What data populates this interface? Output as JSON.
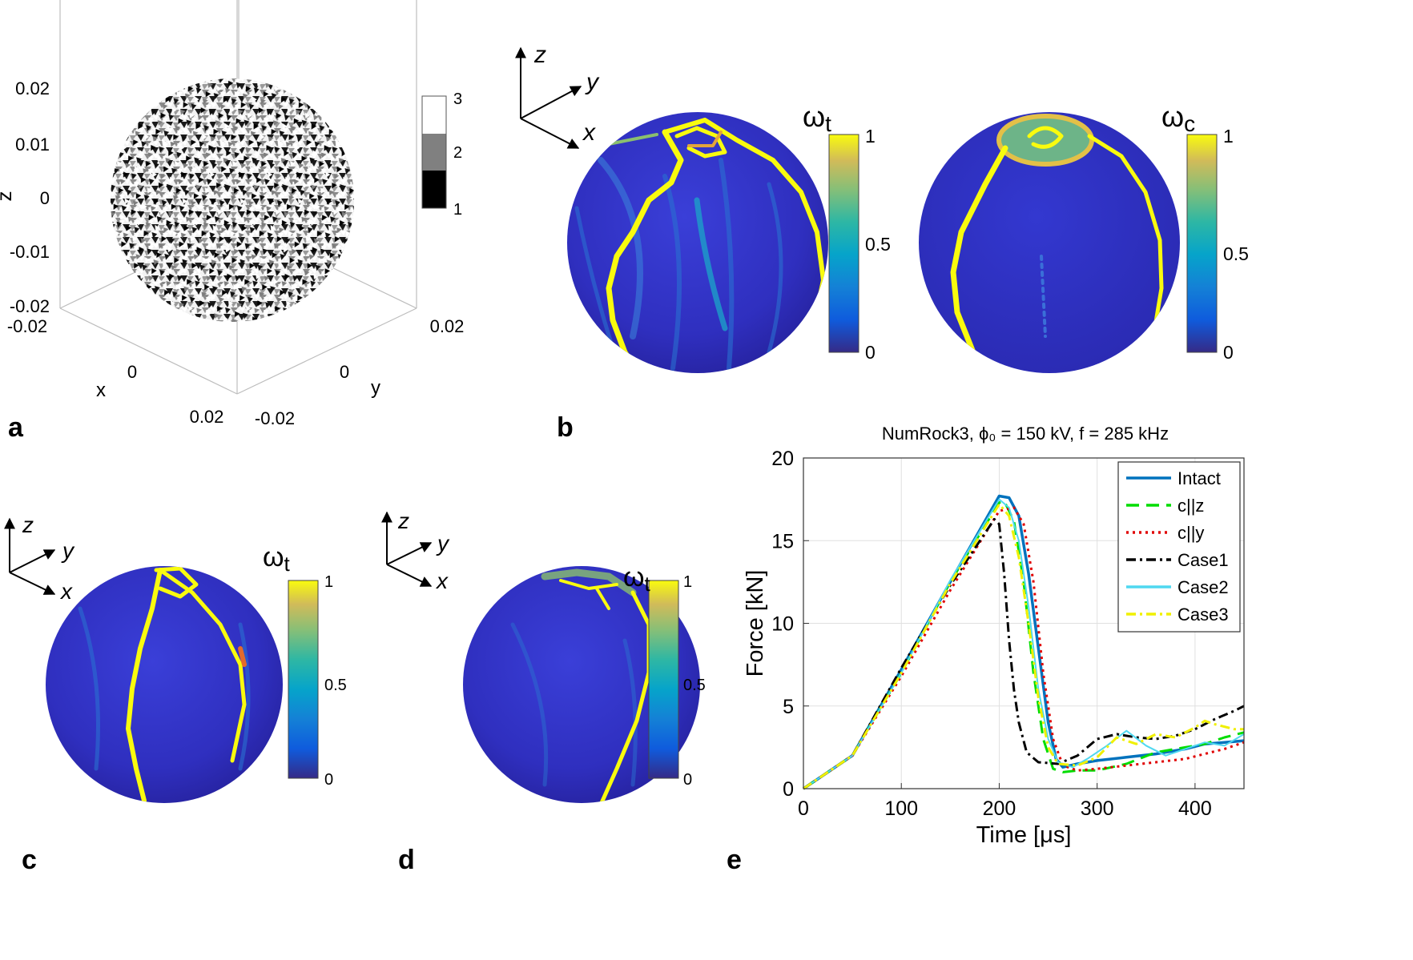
{
  "panels": {
    "a": {
      "letter": "a",
      "axes": {
        "z_label": "z",
        "x_label": "x",
        "y_label": "y",
        "z_ticks": [
          "0.02",
          "0.01",
          "0",
          "-0.01",
          "-0.02"
        ],
        "x_ticks": [
          "-0.02",
          "0",
          "0.02"
        ],
        "y_ticks": [
          "-0.02",
          "0",
          "0.02"
        ]
      },
      "colorbar": {
        "levels": [
          "3",
          "2",
          "1"
        ],
        "colors": [
          "#ffffff",
          "#808080",
          "#000000"
        ]
      }
    },
    "b": {
      "letter": "b",
      "triad": {
        "x": "x",
        "y": "y",
        "z": "z"
      },
      "left_colorbar": {
        "symbol": "ω",
        "sub": "t",
        "ticks": [
          "1",
          "0.5",
          "0"
        ]
      },
      "right_colorbar": {
        "symbol": "ω",
        "sub": "c",
        "ticks": [
          "1",
          "0.5",
          "0"
        ]
      }
    },
    "c": {
      "letter": "c",
      "triad": {
        "x": "x",
        "y": "y",
        "z": "z"
      },
      "colorbar": {
        "symbol": "ω",
        "sub": "t",
        "ticks": [
          "1",
          "0.5",
          "0"
        ]
      }
    },
    "d": {
      "letter": "d",
      "triad": {
        "x": "x",
        "y": "y",
        "z": "z"
      },
      "colorbar": {
        "symbol": "ω",
        "sub": "t",
        "ticks": [
          "1",
          "0.5",
          "0"
        ]
      }
    },
    "e": {
      "letter": "e"
    }
  },
  "chart_data": {
    "type": "line",
    "title": "NumRock3, ϕ₀ = 150 kV, f = 285 kHz",
    "xlabel": "Time [μs]",
    "ylabel": "Force [kN]",
    "xlim": [
      0,
      450
    ],
    "ylim": [
      0,
      20
    ],
    "xticks": [
      "0",
      "100",
      "200",
      "300",
      "400"
    ],
    "yticks": [
      "0",
      "5",
      "10",
      "15",
      "20"
    ],
    "grid": true,
    "legend_position": "top-right",
    "series": [
      {
        "name": "Intact",
        "color": "#0072bd",
        "dash": "solid",
        "x": [
          0,
          50,
          100,
          150,
          200,
          210,
          220,
          230,
          240,
          250,
          258,
          265,
          280,
          300,
          330,
          360,
          390,
          410,
          430,
          450
        ],
        "y": [
          0,
          2,
          7.2,
          12.5,
          17.7,
          17.6,
          16.5,
          13,
          8.5,
          4,
          1.8,
          1.3,
          1.5,
          1.7,
          1.9,
          2.1,
          2.4,
          2.7,
          2.8,
          2.9
        ]
      },
      {
        "name": "c||z",
        "color": "#00dd00",
        "dash": "long",
        "x": [
          0,
          50,
          100,
          150,
          200,
          205,
          215,
          225,
          235,
          245,
          255,
          265,
          280,
          300,
          330,
          360,
          390,
          410,
          430,
          450
        ],
        "y": [
          0,
          2,
          7,
          12.5,
          17.3,
          17.4,
          16.2,
          12.5,
          7,
          3,
          1.2,
          1,
          1.1,
          1.1,
          1.5,
          2.2,
          2.5,
          2.7,
          3.1,
          3.4
        ]
      },
      {
        "name": "c||y",
        "color": "#e00000",
        "dash": "dot",
        "x": [
          0,
          50,
          100,
          150,
          200,
          215,
          225,
          235,
          245,
          255,
          265,
          280,
          300,
          330,
          360,
          390,
          410,
          430,
          450
        ],
        "y": [
          0,
          2,
          6.8,
          12,
          16.8,
          17,
          16,
          12.5,
          7,
          3,
          1.4,
          1.1,
          1.2,
          1.4,
          1.6,
          1.8,
          2.1,
          2.4,
          2.8
        ]
      },
      {
        "name": "Case1",
        "color": "#000000",
        "dash": "dashdot",
        "x": [
          0,
          50,
          100,
          150,
          195,
          200,
          205,
          210,
          215,
          220,
          228,
          240,
          260,
          280,
          300,
          320,
          340,
          360,
          380,
          400,
          420,
          440,
          450
        ],
        "y": [
          0,
          2,
          7.3,
          12.3,
          16.3,
          16,
          13,
          9,
          6,
          4,
          2.2,
          1.6,
          1.5,
          2,
          3,
          3.3,
          3.1,
          3,
          3.2,
          3.6,
          4.2,
          4.7,
          5
        ]
      },
      {
        "name": "Case2",
        "color": "#4fd8f0",
        "dash": "solid",
        "x": [
          0,
          50,
          100,
          150,
          200,
          210,
          220,
          230,
          240,
          250,
          260,
          275,
          290,
          310,
          330,
          350,
          370,
          390,
          410,
          430,
          450
        ],
        "y": [
          0,
          2,
          7,
          12.6,
          17.5,
          17,
          15,
          11,
          6,
          3,
          1.6,
          1.3,
          1.8,
          2.6,
          3.5,
          2.6,
          2,
          2.4,
          2.8,
          2.6,
          3.3
        ]
      },
      {
        "name": "Case3",
        "color": "#f0f000",
        "dash": "dashdot",
        "x": [
          0,
          50,
          100,
          150,
          200,
          210,
          220,
          230,
          240,
          250,
          260,
          280,
          300,
          320,
          340,
          360,
          380,
          400,
          410,
          420,
          440,
          450
        ],
        "y": [
          0,
          2,
          7,
          12.4,
          17.2,
          16.5,
          14,
          10,
          5.5,
          2.5,
          1.5,
          1.4,
          1.9,
          3.1,
          2.7,
          3.3,
          3.1,
          3.7,
          4.1,
          3.9,
          3.6,
          3.6
        ]
      }
    ]
  }
}
